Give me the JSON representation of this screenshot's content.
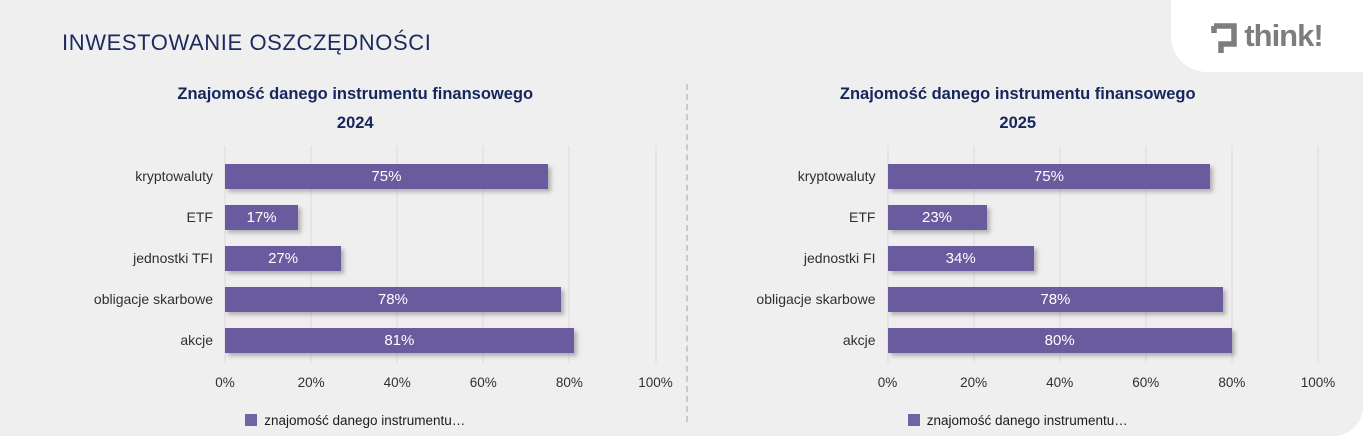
{
  "page": {
    "title": "INWESTOWANIE OSZCZĘDNOŚCI",
    "logo_text": "think!"
  },
  "colors": {
    "background": "#f0efef",
    "navy_title": "#1b2a5e",
    "bar_purple": "#6a5b9e",
    "legend_swatch": "#7163a4",
    "logo_gray": "#7d7d7d",
    "divider_gray": "#c9c9c9",
    "gridline_gray": "#dcdbdb"
  },
  "chart_data": [
    {
      "type": "bar",
      "orientation": "horizontal",
      "title": "Znajomość danego instrumentu finansowego",
      "subtitle": "2024",
      "categories": [
        "kryptowaluty",
        "ETF",
        "jednostki TFI",
        "obligacje skarbowe",
        "akcje"
      ],
      "values": [
        75,
        17,
        27,
        78,
        81
      ],
      "value_labels": [
        "75%",
        "17%",
        "27%",
        "78%",
        "81%"
      ],
      "x_ticks": [
        "0%",
        "20%",
        "40%",
        "60%",
        "80%",
        "100%"
      ],
      "xlim": [
        0,
        100
      ],
      "grid": true,
      "legend": "znajomość danego instrumentu…",
      "legend_position": "bottom-center",
      "bar_color": "#6a5b9e"
    },
    {
      "type": "bar",
      "orientation": "horizontal",
      "title": "Znajomość danego instrumentu finansowego",
      "subtitle": "2025",
      "categories": [
        "kryptowaluty",
        "ETF",
        "jednostki FI",
        "obligacje skarbowe",
        "akcje"
      ],
      "values": [
        75,
        23,
        34,
        78,
        80
      ],
      "value_labels": [
        "75%",
        "23%",
        "34%",
        "78%",
        "80%"
      ],
      "x_ticks": [
        "0%",
        "20%",
        "40%",
        "60%",
        "80%",
        "100%"
      ],
      "xlim": [
        0,
        100
      ],
      "grid": true,
      "legend": "znajomość danego instrumentu…",
      "legend_position": "bottom-center",
      "bar_color": "#6a5b9e"
    }
  ]
}
